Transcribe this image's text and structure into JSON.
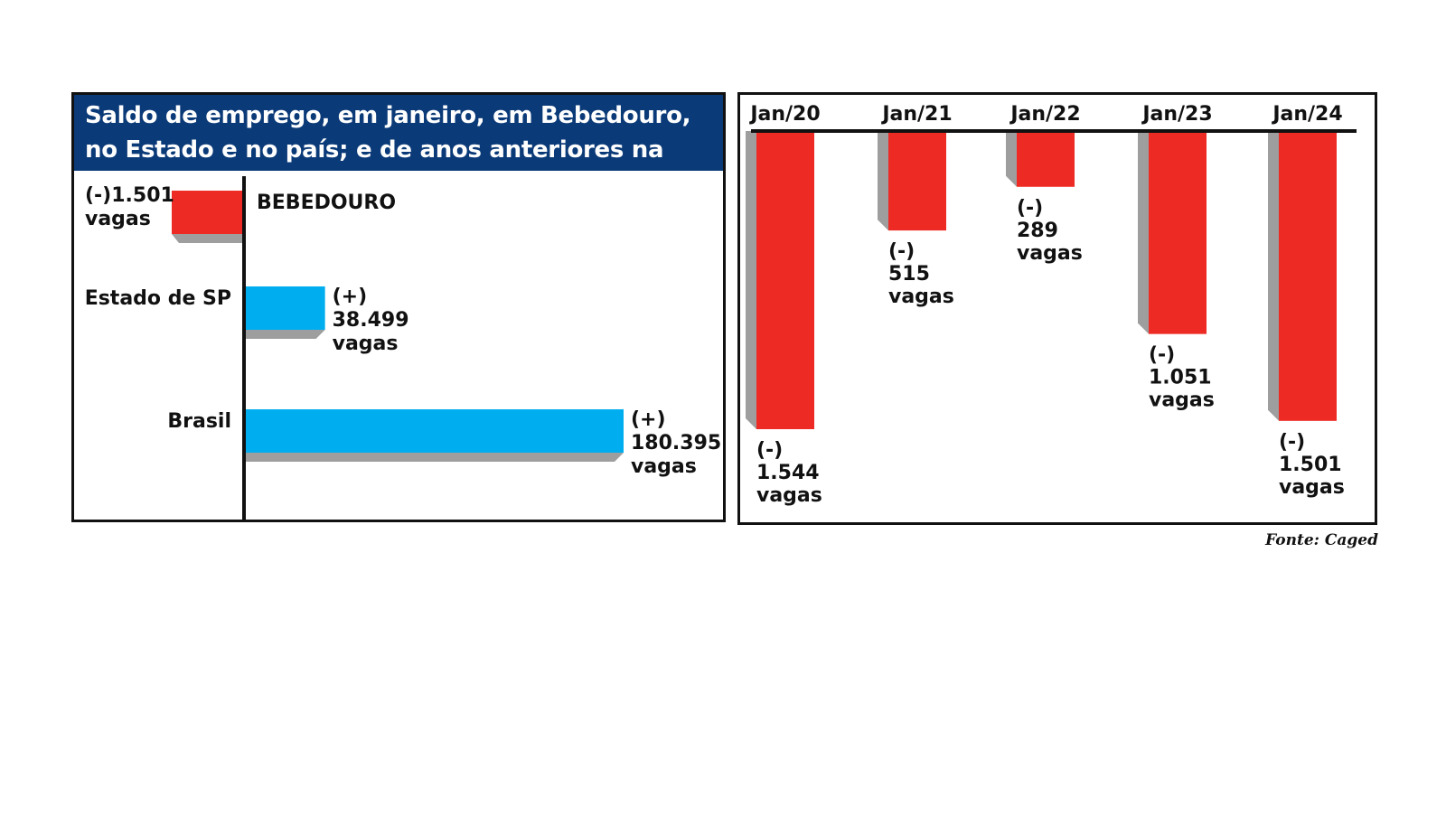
{
  "chart_data": [
    {
      "type": "bar",
      "orientation": "horizontal",
      "title": "Saldo de emprego, em janeiro, em Bebedouro, no Estado e no país; e de anos anteriores na cidade",
      "categories": [
        "BEBEDOURO",
        "Estado de SP",
        "Brasil"
      ],
      "values": [
        -1501,
        38499,
        180395
      ],
      "value_labels": [
        [
          "(-)1.501",
          "vagas"
        ],
        [
          "(+)",
          "38.499",
          "vagas"
        ],
        [
          "(+)",
          "180.395",
          "vagas"
        ]
      ],
      "colors": [
        "#ee2a24",
        "#00aeef",
        "#00aeef"
      ],
      "grid": false
    },
    {
      "type": "bar",
      "orientation": "vertical",
      "categories": [
        "Jan/20",
        "Jan/21",
        "Jan/22",
        "Jan/23",
        "Jan/24"
      ],
      "values": [
        -1544,
        -515,
        -289,
        -1051,
        -1501
      ],
      "value_labels": [
        [
          "(-)",
          "1.544",
          "vagas"
        ],
        [
          "(-)",
          "515",
          "vagas"
        ],
        [
          "(-)",
          "289",
          "vagas"
        ],
        [
          "(-)",
          "1.051",
          "vagas"
        ],
        [
          "(-)",
          "1.501",
          "vagas"
        ]
      ],
      "colors": [
        "#ee2a24"
      ],
      "grid": false
    }
  ],
  "source": "Fonte: Caged"
}
